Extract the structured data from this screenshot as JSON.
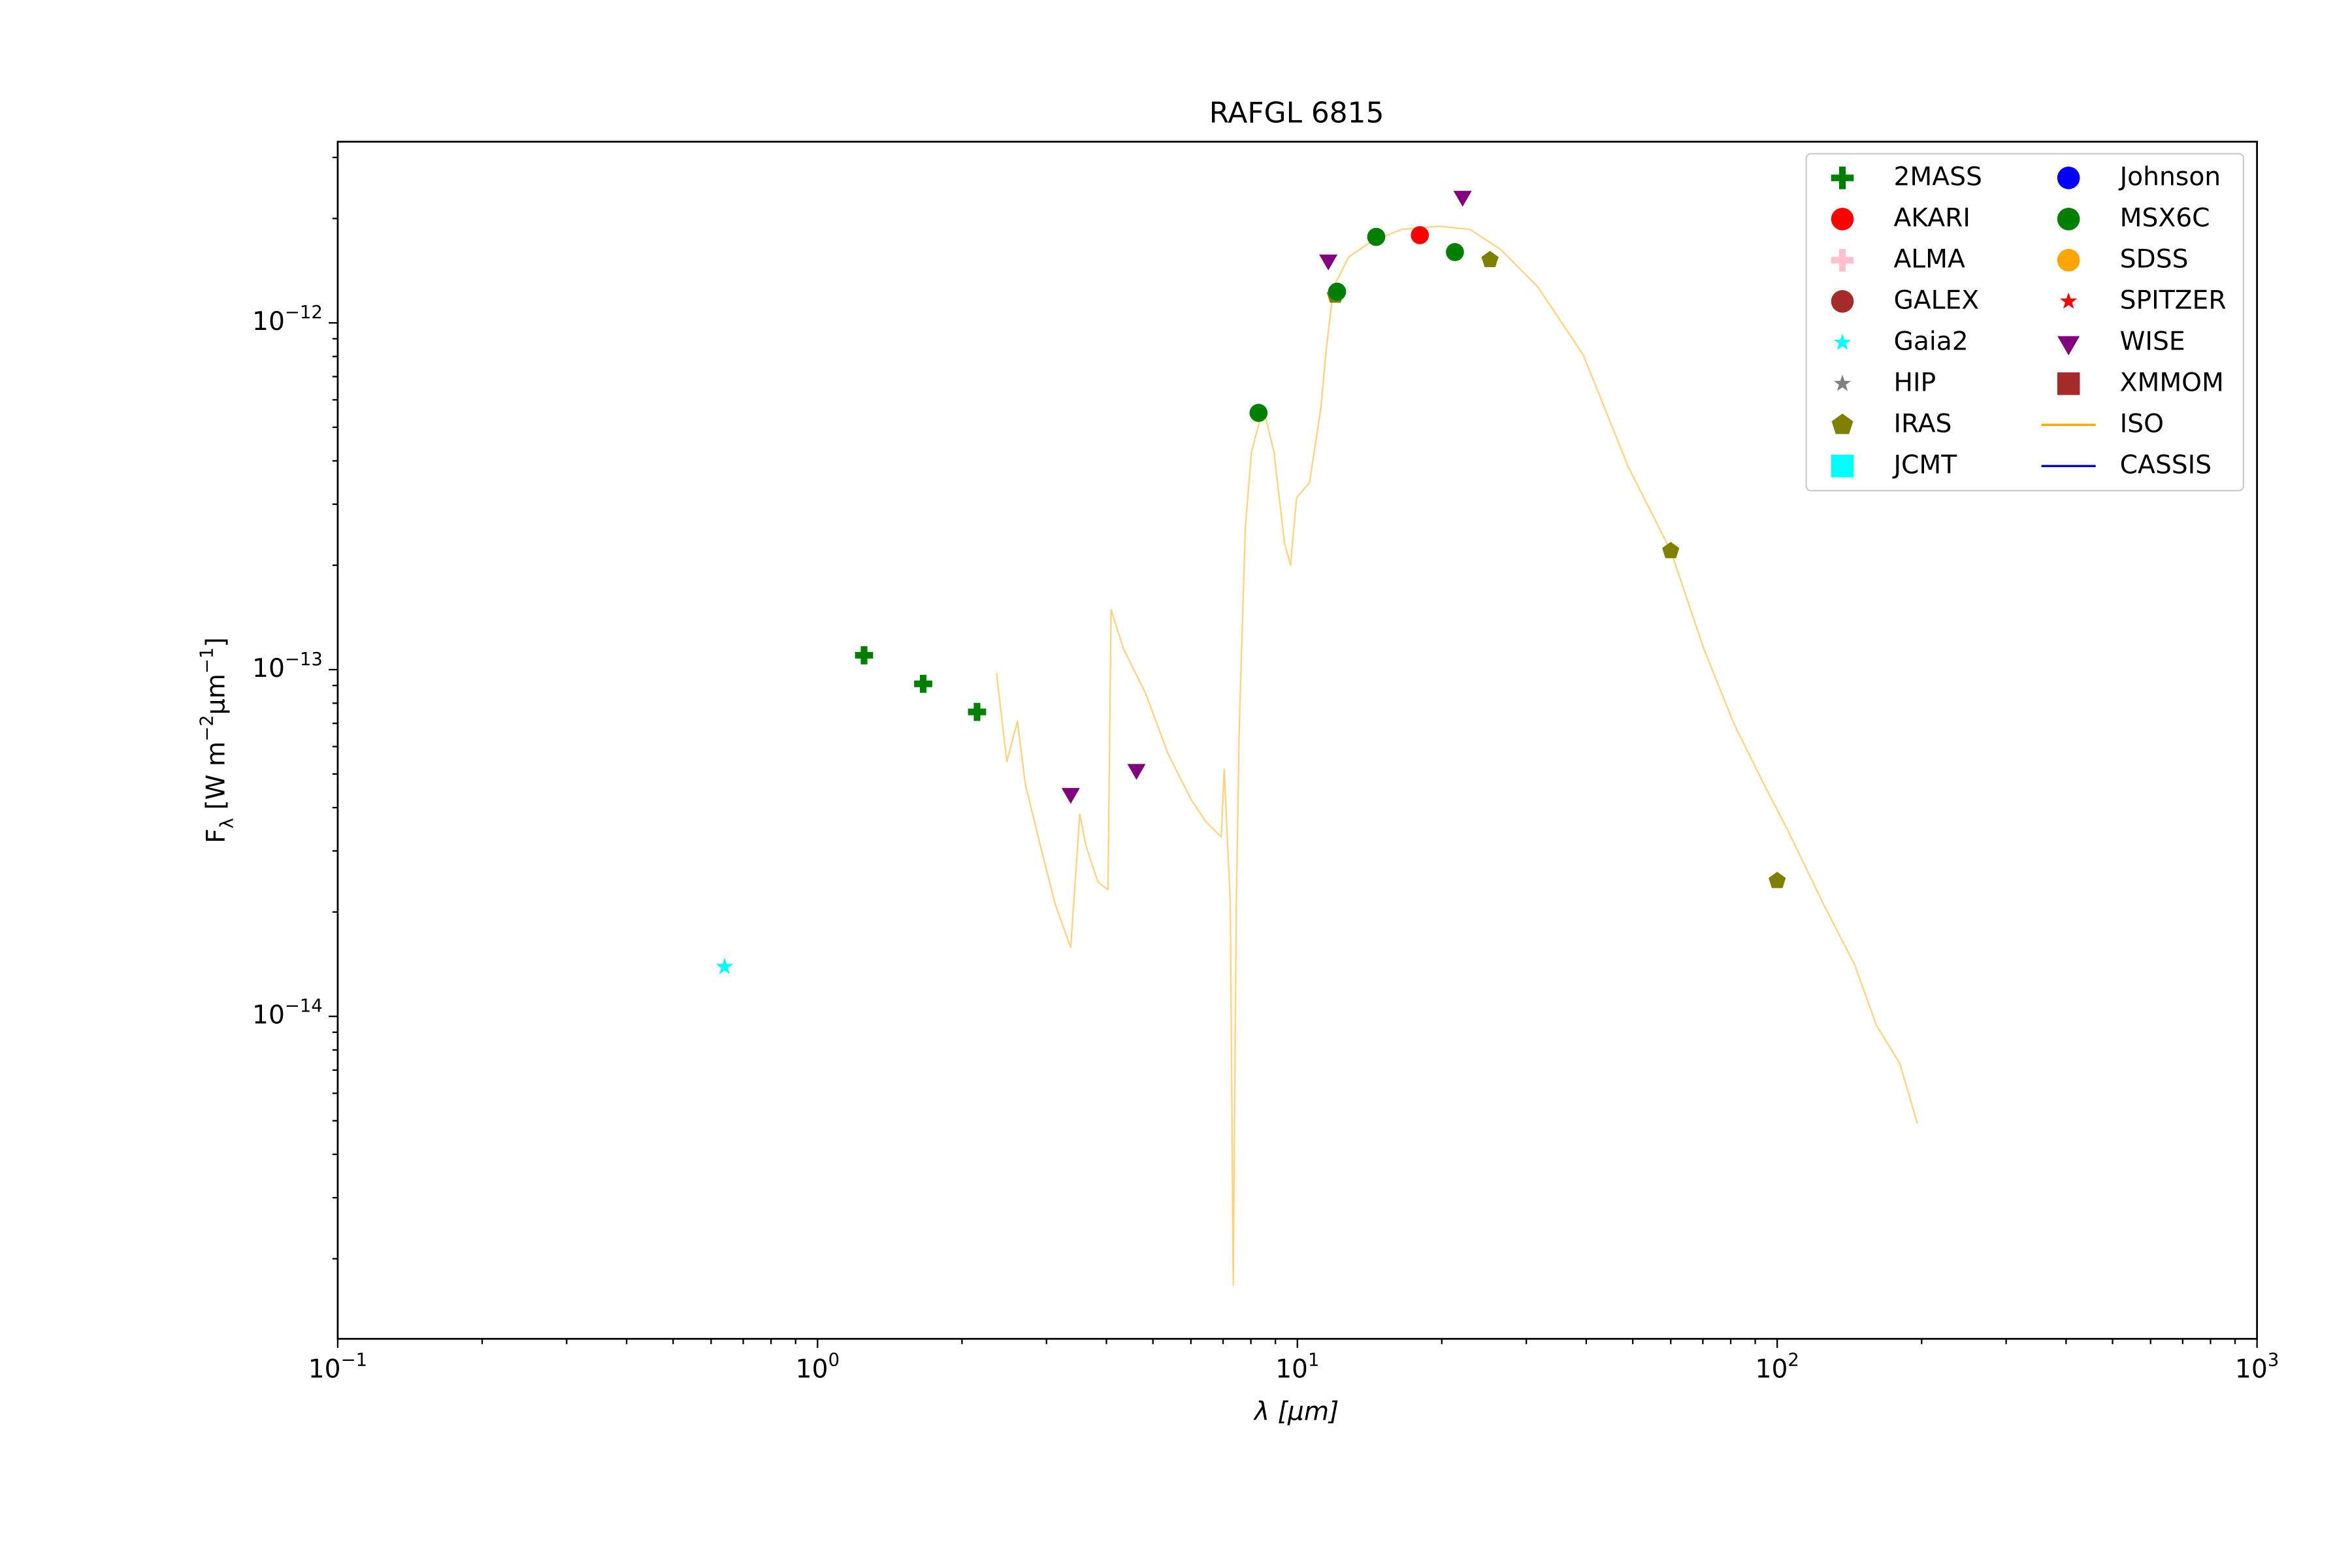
{
  "chart_data": {
    "type": "scatter",
    "title": "RAFGL 6815",
    "xlabel": "λ [μm]",
    "ylabel": "F_{λ} [W m^{−2}μm^{−1}]",
    "xscale": "log",
    "yscale": "log",
    "xlim": [
      0.1,
      1000
    ],
    "ylim": [
      1.175e-15,
      3.33e-12
    ],
    "xticks": [
      {
        "value": 0.1,
        "label": "10^{−1}"
      },
      {
        "value": 1,
        "label": "10^{0}"
      },
      {
        "value": 10,
        "label": "10^{1}"
      },
      {
        "value": 100,
        "label": "10^{2}"
      },
      {
        "value": 1000,
        "label": "10^{3}"
      }
    ],
    "yticks": [
      {
        "value": 1e-14,
        "label": "10^{−14}"
      },
      {
        "value": 1e-13,
        "label": "10^{−13}"
      },
      {
        "value": 1e-12,
        "label": "10^{−12}"
      }
    ],
    "grid": false,
    "legend_position": "upper right",
    "legend_columns": 2,
    "series": [
      {
        "name": "2MASS",
        "color": "#008000",
        "marker": "plus",
        "x": [
          1.25,
          1.66,
          2.15
        ],
        "values": [
          1.1e-13,
          9.1e-14,
          7.55e-14
        ]
      },
      {
        "name": "AKARI",
        "color": "#ff0000",
        "marker": "circle",
        "x": [
          18.0
        ],
        "values": [
          1.79e-12
        ]
      },
      {
        "name": "ALMA",
        "color": "#ffc0cb",
        "marker": "plus",
        "x": [],
        "values": []
      },
      {
        "name": "GALEX",
        "color": "#a52a2a",
        "marker": "circle",
        "x": [],
        "values": []
      },
      {
        "name": "Gaia2",
        "color": "#00ffff",
        "marker": "star",
        "x": [
          0.64
        ],
        "values": [
          1.39e-14
        ]
      },
      {
        "name": "HIP",
        "color": "#808080",
        "marker": "star",
        "x": [],
        "values": []
      },
      {
        "name": "IRAS",
        "color": "#808000",
        "marker": "pentagon",
        "x": [
          12.0,
          25.2,
          60.0,
          100
        ],
        "values": [
          1.2e-12,
          1.52e-12,
          2.2e-13,
          2.46e-14
        ]
      },
      {
        "name": "JCMT",
        "color": "#00ffff",
        "marker": "square",
        "x": [],
        "values": []
      },
      {
        "name": "Johnson",
        "color": "#0000ff",
        "marker": "circle",
        "x": [],
        "values": []
      },
      {
        "name": "MSX6C",
        "color": "#008000",
        "marker": "circle",
        "x": [
          8.3,
          12.1,
          14.6,
          21.3
        ],
        "values": [
          5.5e-13,
          1.23e-12,
          1.77e-12,
          1.6e-12
        ]
      },
      {
        "name": "SDSS",
        "color": "#ffa500",
        "marker": "circle",
        "x": [],
        "values": []
      },
      {
        "name": "SPITZER",
        "color": "#ff0000",
        "marker": "star",
        "x": [],
        "values": []
      },
      {
        "name": "WISE",
        "color": "#800080",
        "marker": "triangle-down",
        "x": [
          3.37,
          4.62,
          11.6,
          22.1
        ],
        "values": [
          4.4e-14,
          5.16e-14,
          1.52e-12,
          2.32e-12
        ]
      },
      {
        "name": "XMMOM",
        "color": "#a52a2a",
        "marker": "square",
        "x": [],
        "values": []
      },
      {
        "name": "ISO",
        "color": "#ffa500",
        "marker": "line",
        "x": [
          2.36,
          2.48,
          2.61,
          2.71,
          2.91,
          3.13,
          3.37,
          3.52,
          3.62,
          3.84,
          4.03,
          4.09,
          4.34,
          4.83,
          5.38,
          6.0,
          6.45,
          6.94,
          7.04,
          7.25,
          7.35,
          7.46,
          7.57,
          7.79,
          8.02,
          8.49,
          8.94,
          9.4,
          9.68,
          9.96,
          10.6,
          11.2,
          11.5,
          11.9,
          12.8,
          14.3,
          16.5,
          19.8,
          22.9,
          26.5,
          31.7,
          39.4,
          49.0,
          60.0,
          70.3,
          81.3,
          93.8,
          105,
          125,
          145,
          161,
          180,
          196
        ],
        "values": [
          9.8e-14,
          5.43e-14,
          7.11e-14,
          4.68e-14,
          3.13e-14,
          2.1e-14,
          1.58e-14,
          3.83e-14,
          3.13e-14,
          2.44e-14,
          2.32e-14,
          1.49e-13,
          1.15e-13,
          8.52e-14,
          5.71e-14,
          4.23e-14,
          3.64e-14,
          3.29e-14,
          5.16e-14,
          2.1e-14,
          1.68e-15,
          2.1e-14,
          6.97e-14,
          2.56e-13,
          4.23e-13,
          5.71e-13,
          4.23e-13,
          2.32e-13,
          2e-13,
          3.13e-13,
          3.46e-13,
          5.71e-13,
          8.52e-13,
          1.27e-12,
          1.55e-12,
          1.72e-12,
          1.86e-12,
          1.9e-12,
          1.86e-12,
          1.63e-12,
          1.27e-12,
          8.1e-13,
          3.83e-13,
          2.2e-13,
          1.15e-13,
          6.97e-14,
          4.68e-14,
          3.46e-14,
          2.1e-14,
          1.41e-14,
          9.42e-15,
          7.33e-15,
          4.91e-15
        ]
      },
      {
        "name": "CASSIS",
        "color": "#0000cd",
        "marker": "line",
        "x": [],
        "values": []
      }
    ]
  }
}
